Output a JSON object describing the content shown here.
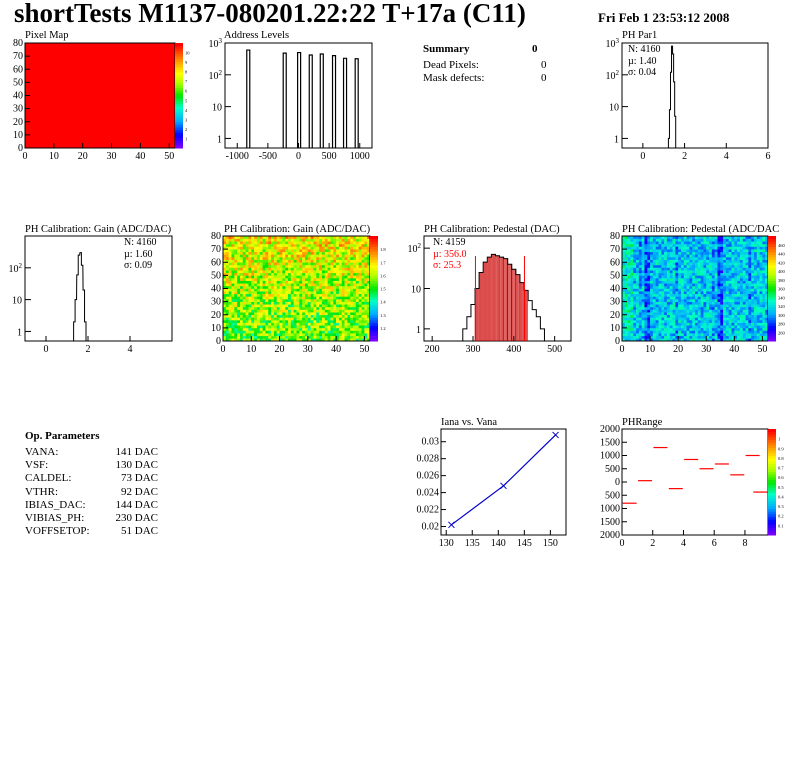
{
  "header": {
    "title": "shortTests M1137-080201.22:22 T+17a (C11)",
    "date": "Fri Feb  1 23:53:12 2008"
  },
  "summary": {
    "heading": "Summary",
    "heading_value": "0",
    "rows": [
      {
        "label": "Dead Pixels:",
        "value": "0"
      },
      {
        "label": "Mask defects:",
        "value": "0"
      }
    ]
  },
  "op_params": {
    "heading": "Op. Parameters",
    "rows": [
      {
        "name": "VANA:",
        "value": "141 DAC"
      },
      {
        "name": "VSF:",
        "value": "130 DAC"
      },
      {
        "name": "CALDEL:",
        "value": "73 DAC"
      },
      {
        "name": "VTHR:",
        "value": "92 DAC"
      },
      {
        "name": "IBIAS_DAC:",
        "value": "144 DAC"
      },
      {
        "name": "VIBIAS_PH:",
        "value": "230 DAC"
      },
      {
        "name": "VOFFSETOP:",
        "value": "51 DAC"
      }
    ]
  },
  "colors": {
    "red": "#ff0000",
    "blue": "#0000cc",
    "hatch": "#cc0000"
  },
  "chart_data": [
    {
      "id": "pixel-map",
      "type": "heatmap",
      "title": "Pixel Map",
      "xlim": [
        0,
        52
      ],
      "ylim": [
        0,
        80
      ],
      "xticks": [
        "0",
        "10",
        "20",
        "30",
        "40",
        "50"
      ],
      "yticks": [
        "0",
        "10",
        "20",
        "30",
        "40",
        "50",
        "60",
        "70",
        "80"
      ],
      "zlim": [
        0,
        10
      ],
      "uniform_value": 10,
      "palette_labels": [
        "1",
        "2",
        "3",
        "4",
        "5",
        "6",
        "7",
        "8",
        "9",
        "10"
      ]
    },
    {
      "id": "address-levels",
      "type": "histogram",
      "title": "Address Levels",
      "xlim": [
        -1200,
        1200
      ],
      "log_y": true,
      "ylim": [
        0.5,
        1000
      ],
      "xticks": [
        "-1000",
        "-500",
        "0",
        "500",
        "1000"
      ],
      "yticks": [
        "1",
        "10",
        "10^2",
        "10^3"
      ],
      "peaks": [
        {
          "x": -820,
          "height": 600
        },
        {
          "x": -225,
          "height": 480
        },
        {
          "x": 10,
          "height": 500
        },
        {
          "x": 200,
          "height": 420
        },
        {
          "x": 380,
          "height": 450
        },
        {
          "x": 580,
          "height": 400
        },
        {
          "x": 760,
          "height": 330
        },
        {
          "x": 950,
          "height": 320
        }
      ]
    },
    {
      "id": "ph-par1",
      "type": "histogram",
      "title": "PH Par1",
      "xlim": [
        -1,
        6
      ],
      "log_y": true,
      "ylim": [
        0.5,
        1000
      ],
      "xticks": [
        "0",
        "2",
        "4",
        "6"
      ],
      "yticks": [
        "1",
        "10",
        "10^2",
        "10^3"
      ],
      "stats": {
        "N": "N: 4160",
        "mean": "µ: 1.40",
        "sigma": "σ: 0.04"
      },
      "bins": [
        {
          "x": 1.25,
          "y": 1
        },
        {
          "x": 1.3,
          "y": 8
        },
        {
          "x": 1.35,
          "y": 120
        },
        {
          "x": 1.4,
          "y": 800
        },
        {
          "x": 1.45,
          "y": 450
        },
        {
          "x": 1.5,
          "y": 60
        },
        {
          "x": 1.55,
          "y": 5
        }
      ]
    },
    {
      "id": "ph-gain-hist",
      "type": "histogram",
      "title": "PH Calibration: Gain (ADC/DAC)",
      "xlim": [
        -1,
        6
      ],
      "log_y": true,
      "ylim": [
        0.5,
        1000
      ],
      "xticks": [
        "0",
        "2",
        "4"
      ],
      "yticks": [
        "1",
        "10",
        "10^2"
      ],
      "stats": {
        "N": "N: 4160",
        "mean": "µ: 1.60",
        "sigma": "σ: 0.09"
      },
      "bins": [
        {
          "x": 1.35,
          "y": 2
        },
        {
          "x": 1.42,
          "y": 10
        },
        {
          "x": 1.5,
          "y": 60
        },
        {
          "x": 1.57,
          "y": 250
        },
        {
          "x": 1.65,
          "y": 300
        },
        {
          "x": 1.72,
          "y": 120
        },
        {
          "x": 1.8,
          "y": 20
        },
        {
          "x": 1.87,
          "y": 2
        }
      ]
    },
    {
      "id": "ph-gain-map",
      "type": "heatmap",
      "title": "PH Calibration: Gain (ADC/DAC)",
      "xlim": [
        0,
        52
      ],
      "ylim": [
        0,
        80
      ],
      "xticks": [
        "0",
        "10",
        "20",
        "30",
        "40",
        "50"
      ],
      "yticks": [
        "0",
        "10",
        "20",
        "30",
        "40",
        "50",
        "60",
        "70",
        "80"
      ],
      "zlim": [
        1.1,
        1.9
      ],
      "palette_labels": [
        "1.2",
        "1.3",
        "1.4",
        "1.5",
        "1.6",
        "1.7",
        "1.8"
      ]
    },
    {
      "id": "ph-pedestal-hist",
      "type": "histogram",
      "title": "PH Calibration: Pedestal (DAC)",
      "xlim": [
        180,
        540
      ],
      "log_y": true,
      "ylim": [
        0.5,
        200
      ],
      "xticks": [
        "200",
        "300",
        "400",
        "500"
      ],
      "yticks": [
        "1",
        "10",
        "10^2"
      ],
      "stats": {
        "N": "N: 4159",
        "mean": "µ: 356.0",
        "sigma": "σ: 25.3"
      },
      "fit_range": [
        306,
        426
      ],
      "bins": [
        {
          "x": 280,
          "y": 1
        },
        {
          "x": 290,
          "y": 2
        },
        {
          "x": 300,
          "y": 4
        },
        {
          "x": 310,
          "y": 10
        },
        {
          "x": 320,
          "y": 25
        },
        {
          "x": 330,
          "y": 45
        },
        {
          "x": 340,
          "y": 60
        },
        {
          "x": 350,
          "y": 70
        },
        {
          "x": 360,
          "y": 65
        },
        {
          "x": 370,
          "y": 60
        },
        {
          "x": 380,
          "y": 55
        },
        {
          "x": 390,
          "y": 40
        },
        {
          "x": 400,
          "y": 30
        },
        {
          "x": 410,
          "y": 22
        },
        {
          "x": 420,
          "y": 14
        },
        {
          "x": 430,
          "y": 9
        },
        {
          "x": 440,
          "y": 5
        },
        {
          "x": 450,
          "y": 3
        },
        {
          "x": 460,
          "y": 2
        },
        {
          "x": 470,
          "y": 1
        }
      ]
    },
    {
      "id": "ph-pedestal-map",
      "type": "heatmap",
      "title": "PH Calibration: Pedestal (ADC/DAC",
      "xlim": [
        0,
        52
      ],
      "ylim": [
        0,
        80
      ],
      "xticks": [
        "0",
        "10",
        "20",
        "30",
        "40",
        "50"
      ],
      "yticks": [
        "0",
        "10",
        "20",
        "30",
        "40",
        "50",
        "60",
        "70",
        "80"
      ],
      "zlim": [
        230,
        460
      ],
      "palette_labels": [
        "260",
        "280",
        "300",
        "320",
        "340",
        "360",
        "380",
        "400",
        "420",
        "440",
        "460"
      ]
    },
    {
      "id": "iana-vs-vana",
      "type": "line",
      "title": "Iana vs. Vana",
      "xlim": [
        129,
        153
      ],
      "ylim": [
        0.019,
        0.0315
      ],
      "xticks": [
        "130",
        "135",
        "140",
        "145",
        "150"
      ],
      "yticks": [
        "0.02",
        "0.022",
        "0.024",
        "0.026",
        "0.028",
        "0.03"
      ],
      "x": [
        131,
        141,
        151
      ],
      "y": [
        0.0202,
        0.0248,
        0.0308
      ]
    },
    {
      "id": "ph-range",
      "type": "scatter",
      "title": "PHRange",
      "xlim": [
        0,
        9.5
      ],
      "ylim": [
        -2000,
        2000
      ],
      "xticks": [
        "0",
        "2",
        "4",
        "6",
        "8"
      ],
      "yticks": [
        "2000",
        "1500",
        "1000",
        "500",
        "0",
        "500",
        "1000",
        "1500",
        "2000"
      ],
      "palette_labels": [
        "0.1",
        "0.2",
        "0.3",
        "0.4",
        "0.5",
        "0.6",
        "0.7",
        "0.8",
        "0.9",
        "1"
      ],
      "x": [
        0.5,
        1.5,
        2.5,
        3.5,
        4.5,
        5.5,
        6.5,
        7.5,
        8.5,
        9.0
      ],
      "y": [
        -800,
        50,
        1300,
        -250,
        850,
        500,
        680,
        270,
        1000,
        -380
      ]
    }
  ]
}
